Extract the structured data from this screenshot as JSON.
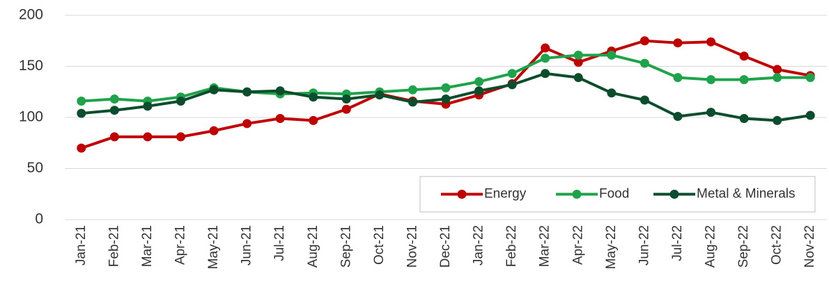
{
  "chart_data": {
    "type": "line",
    "categories": [
      "Jan-21",
      "Feb-21",
      "Mar-21",
      "Apr-21",
      "May-21",
      "Jun-21",
      "Jul-21",
      "Aug-21",
      "Sep-21",
      "Oct-21",
      "Nov-21",
      "Dec-21",
      "Jan-22",
      "Feb-22",
      "Mar-22",
      "Apr-22",
      "May-22",
      "Jun-22",
      "Jul-22",
      "Aug-22",
      "Sep-22",
      "Oct-22",
      "Nov-22"
    ],
    "series": [
      {
        "name": "Energy",
        "color": "#c00000",
        "values": [
          70,
          81,
          81,
          81,
          87,
          94,
          99,
          97,
          108,
          123,
          116,
          113,
          122,
          133,
          168,
          154,
          165,
          175,
          173,
          174,
          160,
          147,
          141
        ]
      },
      {
        "name": "Food",
        "color": "#1fa34a",
        "values": [
          116,
          118,
          116,
          120,
          129,
          125,
          123,
          124,
          123,
          125,
          127,
          129,
          135,
          143,
          158,
          161,
          161,
          153,
          139,
          137,
          137,
          139,
          139
        ]
      },
      {
        "name": "Metal & Minerals",
        "color": "#0b4d2c",
        "values": [
          104,
          107,
          111,
          116,
          127,
          125,
          126,
          120,
          118,
          122,
          115,
          118,
          126,
          132,
          143,
          139,
          124,
          117,
          101,
          105,
          99,
          97,
          102
        ]
      }
    ],
    "ylim": [
      0,
      200
    ],
    "yticks": [
      0,
      50,
      100,
      150,
      200
    ],
    "grid": true,
    "legend": "lower right"
  }
}
